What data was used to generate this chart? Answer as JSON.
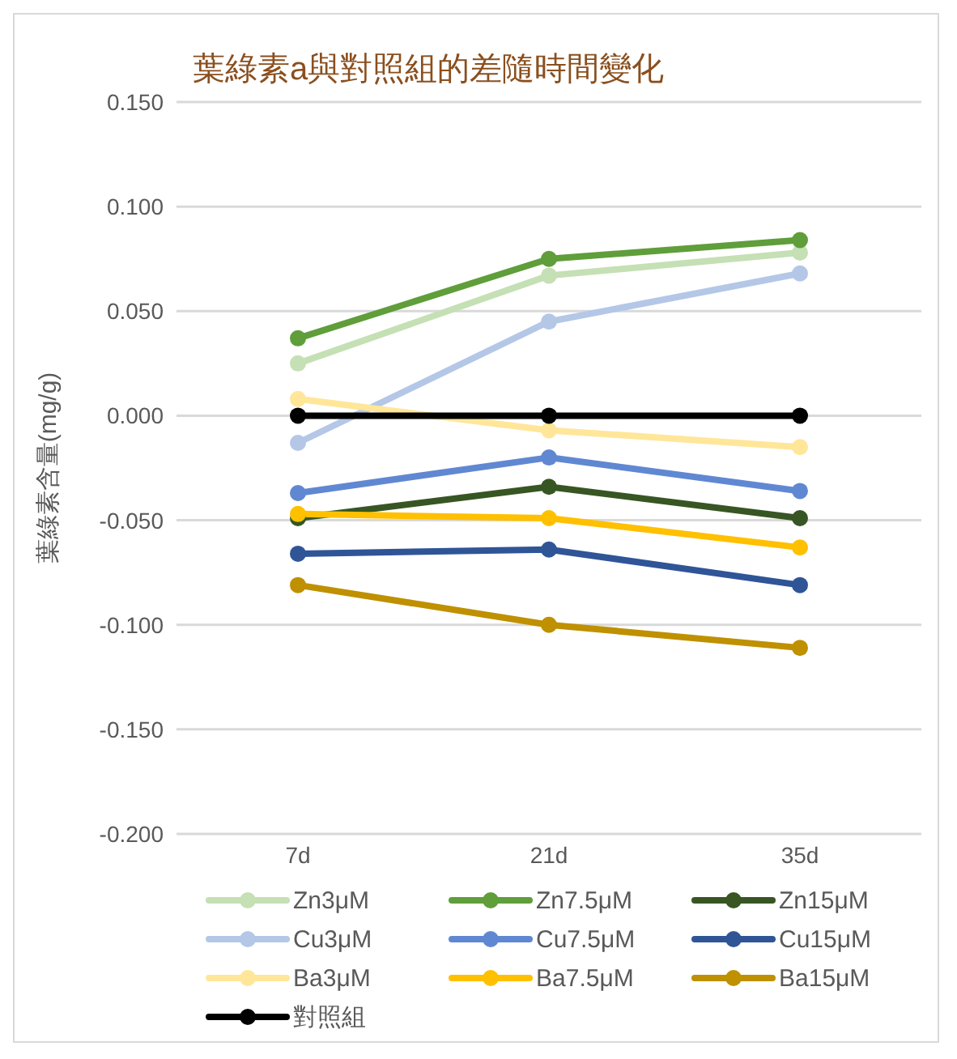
{
  "chart_data": {
    "type": "line",
    "title": "葉綠素a與對照組的差隨時間變化",
    "ylabel": "葉綠素含量(mg/g)",
    "categories": [
      "7d",
      "21d",
      "35d"
    ],
    "ylim": [
      -0.2,
      0.15
    ],
    "yticks": [
      {
        "value": -0.2,
        "label": "-0.200"
      },
      {
        "value": -0.15,
        "label": "-0.150"
      },
      {
        "value": -0.1,
        "label": "-0.100"
      },
      {
        "value": -0.05,
        "label": "-0.050"
      },
      {
        "value": 0,
        "label": "0.000"
      },
      {
        "value": 0.05,
        "label": "0.050"
      },
      {
        "value": 0.1,
        "label": "0.100"
      },
      {
        "value": 0.15,
        "label": "0.150"
      }
    ],
    "grid": "y",
    "legend": "bottom",
    "marker": "circle",
    "line_style": "solid",
    "series": [
      {
        "name": "Zn3μM",
        "color": "#c5e0b4",
        "values": [
          0.025,
          0.067,
          0.078
        ]
      },
      {
        "name": "Zn7.5μM",
        "color": "#5f9e3a",
        "values": [
          0.037,
          0.075,
          0.084
        ]
      },
      {
        "name": "Zn15μM",
        "color": "#375623",
        "values": [
          -0.049,
          -0.034,
          -0.049
        ]
      },
      {
        "name": "Cu3μM",
        "color": "#b4c7e7",
        "values": [
          -0.013,
          0.045,
          0.068
        ]
      },
      {
        "name": "Cu7.5μM",
        "color": "#6088d2",
        "values": [
          -0.037,
          -0.02,
          -0.036
        ]
      },
      {
        "name": "Cu15μM",
        "color": "#2f5597",
        "values": [
          -0.066,
          -0.064,
          -0.081
        ]
      },
      {
        "name": "Ba3μM",
        "color": "#ffe699",
        "values": [
          0.008,
          -0.007,
          -0.015
        ]
      },
      {
        "name": "Ba7.5μM",
        "color": "#ffc000",
        "values": [
          -0.047,
          -0.049,
          -0.063
        ]
      },
      {
        "name": "Ba15μM",
        "color": "#bf9000",
        "values": [
          -0.081,
          -0.1,
          -0.111
        ]
      },
      {
        "name": "對照組",
        "color": "#000000",
        "values": [
          0,
          0,
          0
        ]
      }
    ]
  }
}
